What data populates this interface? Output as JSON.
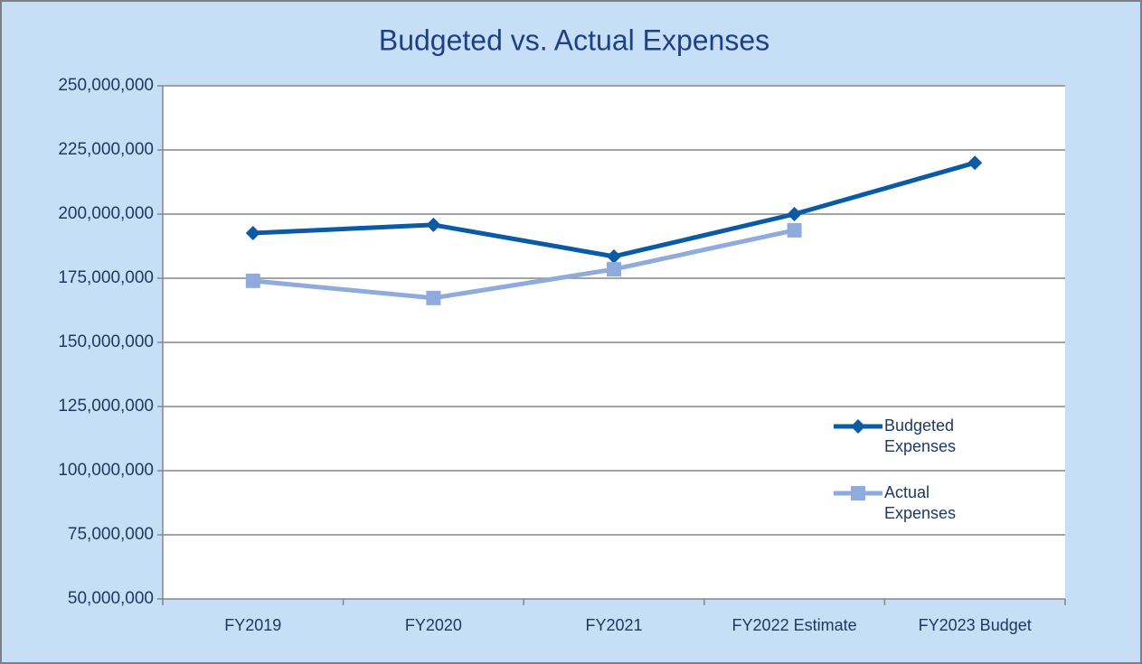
{
  "chart_data": {
    "type": "line",
    "title": "Budgeted vs. Actual Expenses",
    "categories": [
      "FY2019",
      "FY2020",
      "FY2021",
      "FY2022 Estimate",
      "FY2023 Budget"
    ],
    "series": [
      {
        "name": "Budgeted Expenses",
        "color": "#0b5aa5",
        "marker": "diamond",
        "values": [
          192600000,
          195800000,
          183500000,
          200000000,
          220000000
        ]
      },
      {
        "name": "Actual Expenses",
        "color": "#8faadc",
        "marker": "square",
        "values": [
          174000000,
          167300000,
          178500000,
          193700000,
          null
        ]
      }
    ],
    "ylim": [
      50000000,
      250000000
    ],
    "yticks": [
      {
        "value": 50000000,
        "label": "50,000,000"
      },
      {
        "value": 75000000,
        "label": "75,000,000"
      },
      {
        "value": 100000000,
        "label": "100,000,000"
      },
      {
        "value": 125000000,
        "label": "125,000,000"
      },
      {
        "value": 150000000,
        "label": "150,000,000"
      },
      {
        "value": 175000000,
        "label": "175,000,000"
      },
      {
        "value": 200000000,
        "label": "200,000,000"
      },
      {
        "value": 225000000,
        "label": "225,000,000"
      },
      {
        "value": 250000000,
        "label": "250,000,000"
      }
    ],
    "grid": true,
    "legend": "right"
  }
}
